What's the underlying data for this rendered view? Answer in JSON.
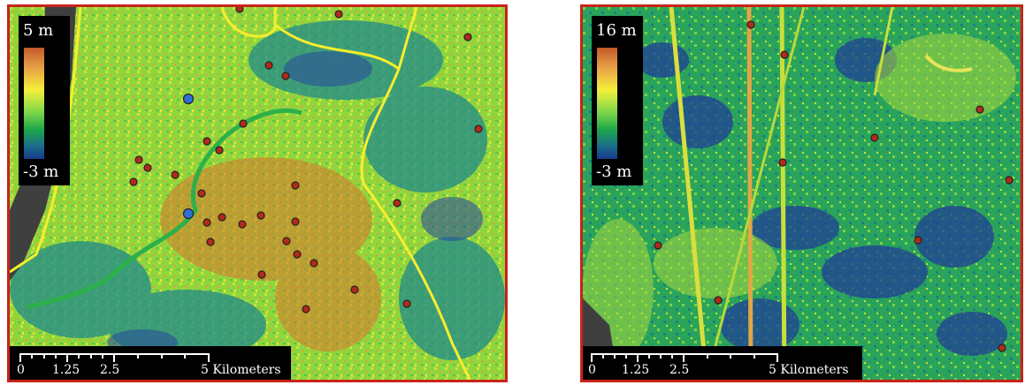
{
  "left_map": {
    "legend": {
      "max_label": "5 m",
      "min_label": "-3 m"
    },
    "scalebar": {
      "labels": [
        "0",
        "1.25",
        "2.5",
        "5 Kilometers"
      ]
    },
    "marker_colors": {
      "red": "#b32a1a",
      "blue": "#2f6fd8"
    }
  },
  "right_map": {
    "legend": {
      "max_label": "16 m",
      "min_label": "-3 m"
    },
    "scalebar": {
      "labels": [
        "0",
        "1.25",
        "2.5",
        "5 Kilometers"
      ]
    },
    "marker_colors": {
      "red": "#b32a1a"
    }
  },
  "colors": {
    "frame": "#c8231b",
    "road": "#f7ee2c",
    "river": "#3f3f3f"
  }
}
